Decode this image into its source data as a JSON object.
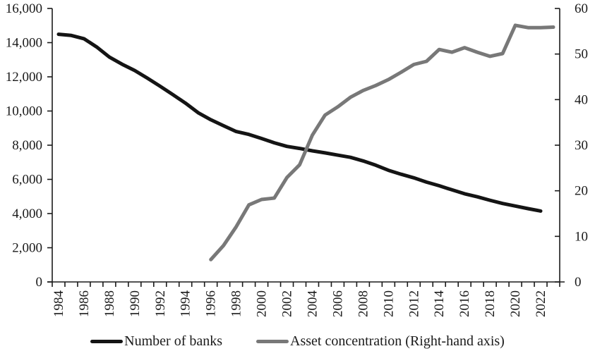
{
  "chart_data": {
    "type": "line",
    "title": "",
    "xlabel": "",
    "ylabel": "",
    "y2label": "",
    "x": [
      1984,
      1985,
      1986,
      1987,
      1988,
      1989,
      1990,
      1991,
      1992,
      1993,
      1994,
      1995,
      1996,
      1997,
      1998,
      1999,
      2000,
      2001,
      2002,
      2003,
      2004,
      2005,
      2006,
      2007,
      2008,
      2009,
      2010,
      2011,
      2012,
      2013,
      2014,
      2015,
      2016,
      2017,
      2018,
      2019,
      2020,
      2021,
      2022,
      2023
    ],
    "x_tick_labels": [
      "1984",
      "1986",
      "1988",
      "1990",
      "1992",
      "1994",
      "1996",
      "1998",
      "2000",
      "2002",
      "2004",
      "2006",
      "2008",
      "2010",
      "2012",
      "2014",
      "2016",
      "2018",
      "2020",
      "2022"
    ],
    "ylim": [
      0,
      16000
    ],
    "y_ticks": [
      0,
      2000,
      4000,
      6000,
      8000,
      10000,
      12000,
      14000,
      16000
    ],
    "y_tick_labels": [
      "0",
      "2,000",
      "4,000",
      "6,000",
      "8,000",
      "10,000",
      "12,000",
      "14,000",
      "16,000"
    ],
    "y2lim": [
      0,
      60
    ],
    "y2_ticks": [
      0,
      10,
      20,
      30,
      40,
      50,
      60
    ],
    "y2_tick_labels": [
      "0",
      "10",
      "20",
      "30",
      "40",
      "50",
      "60"
    ],
    "grid": false,
    "legend_position": "bottom",
    "series": [
      {
        "name": "Number of banks",
        "axis": "left",
        "color": "#141414",
        "values": [
          14490,
          14420,
          14230,
          13750,
          13160,
          12740,
          12370,
          11920,
          11450,
          10960,
          10460,
          9900,
          9490,
          9140,
          8800,
          8630,
          8390,
          8140,
          7930,
          7810,
          7670,
          7550,
          7420,
          7290,
          7080,
          6830,
          6530,
          6300,
          6090,
          5840,
          5630,
          5390,
          5160,
          4980,
          4780,
          4590,
          4440,
          4290,
          4150,
          null
        ]
      },
      {
        "name": "Asset concentration (Right-hand axis)",
        "axis": "right",
        "color": "#787878",
        "values": [
          null,
          null,
          null,
          null,
          null,
          null,
          null,
          null,
          null,
          null,
          null,
          null,
          4.9,
          8.0,
          12.1,
          16.9,
          18.1,
          18.4,
          22.9,
          25.7,
          32.2,
          36.6,
          38.4,
          40.5,
          42.0,
          43.1,
          44.4,
          46.0,
          47.7,
          48.4,
          51.0,
          50.4,
          51.4,
          50.4,
          49.5,
          50.1,
          56.3,
          55.8,
          55.8,
          55.9
        ]
      }
    ]
  },
  "legend": {
    "items": [
      {
        "label": "Number of banks",
        "color": "#141414"
      },
      {
        "label": "Asset concentration (Right-hand axis)",
        "color": "#787878"
      }
    ]
  }
}
